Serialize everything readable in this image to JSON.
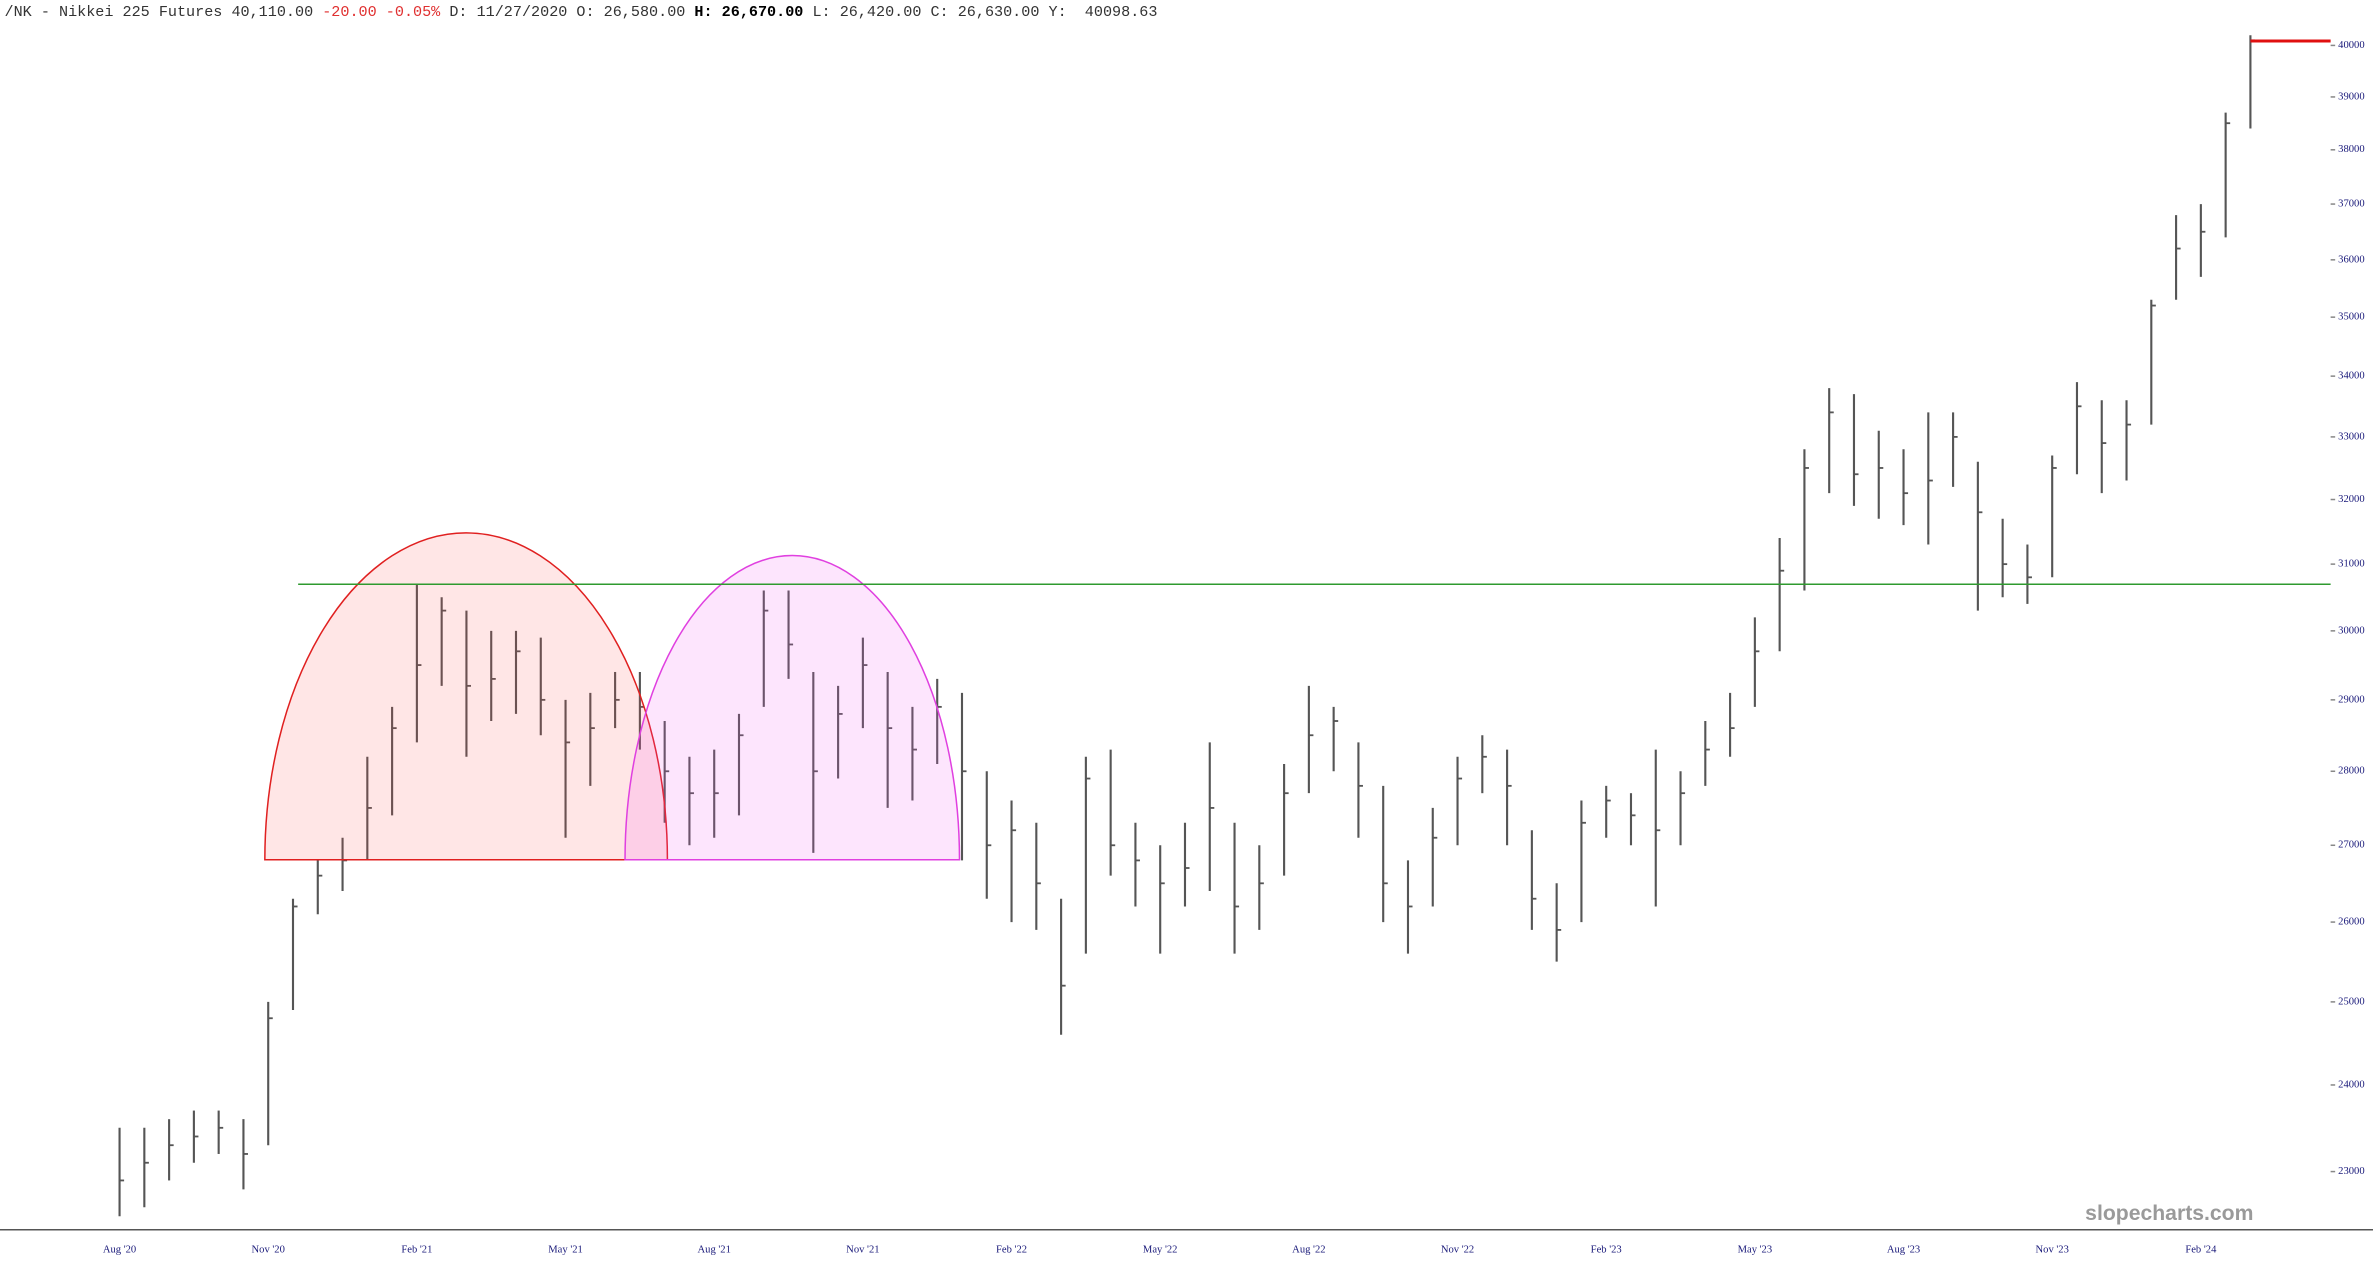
{
  "header": {
    "symbol": "/NK - Nikkei 225 Futures",
    "last": "40,110.00",
    "change": "-20.00",
    "change_pct": "-0.05%",
    "date_label": "D:",
    "date": "11/27/2020",
    "open_label": "O:",
    "open": "26,580.00",
    "high_label": "H:",
    "high": "26,670.00",
    "low_label": "L:",
    "low": "26,420.00",
    "close_label": "C:",
    "close": "26,630.00",
    "y_label": "Y:",
    "y": "40098.63"
  },
  "watermark": "slopecharts.com",
  "chart_data": {
    "type": "ohlc",
    "log_scale": true,
    "color": "#555555",
    "categories": [
      "Aug '20",
      null,
      null,
      null,
      null,
      null,
      "Nov '20",
      null,
      null,
      null,
      null,
      null,
      "Feb '21",
      null,
      null,
      null,
      null,
      null,
      "May '21",
      null,
      null,
      null,
      null,
      null,
      "Aug '21",
      null,
      null,
      null,
      null,
      null,
      "Nov '21",
      null,
      null,
      null,
      null,
      null,
      "Feb '22",
      null,
      null,
      null,
      null,
      null,
      "May '22",
      null,
      null,
      null,
      null,
      null,
      "Aug '22",
      null,
      null,
      null,
      null,
      null,
      "Nov '22",
      null,
      null,
      null,
      null,
      null,
      "Feb '23",
      null,
      null,
      null,
      null,
      null,
      "May '23",
      null,
      null,
      null,
      null,
      null,
      "Aug '23",
      null,
      null,
      null,
      null,
      null,
      "Nov '23",
      null,
      null,
      null,
      null,
      null,
      "Feb '24",
      null,
      null
    ],
    "high": [
      23500,
      23500,
      23600,
      23700,
      23700,
      23600,
      25000,
      26300,
      26800,
      27100,
      28200,
      28900,
      30700,
      30500,
      30300,
      30000,
      30000,
      29900,
      29000,
      29100,
      29400,
      29400,
      28700,
      28200,
      28300,
      28800,
      30600,
      30600,
      29400,
      29200,
      29900,
      29400,
      28900,
      29300,
      29100,
      28000,
      27600,
      27300,
      26300,
      28200,
      28300,
      27300,
      27000,
      27300,
      28400,
      27300,
      27000,
      28100,
      29200,
      28900,
      28400,
      27800,
      26800,
      27500,
      28200,
      28500,
      28300,
      27200,
      26500,
      27600,
      27800,
      27700,
      28300,
      28000,
      28700,
      29100,
      30200,
      31400,
      32800,
      33800,
      33700,
      33100,
      32800,
      33400,
      33400,
      32600,
      31700,
      31300,
      32700,
      33900,
      33600,
      33600,
      35300,
      36800,
      37000,
      38700,
      40200
    ],
    "low": [
      22500,
      22600,
      22900,
      23100,
      23200,
      22800,
      23300,
      24900,
      26100,
      26400,
      26800,
      27400,
      28400,
      29200,
      28200,
      28700,
      28800,
      28500,
      27100,
      27800,
      28600,
      28300,
      27300,
      27000,
      27100,
      27400,
      28900,
      29300,
      26900,
      27900,
      28600,
      27500,
      27600,
      28100,
      26800,
      26300,
      26000,
      25900,
      24600,
      25600,
      26600,
      26200,
      25600,
      26200,
      26400,
      25600,
      25900,
      26600,
      27700,
      28000,
      27100,
      26000,
      25600,
      26200,
      27000,
      27700,
      27000,
      25900,
      25500,
      26000,
      27100,
      27000,
      26200,
      27000,
      27800,
      28200,
      28900,
      29700,
      30600,
      32100,
      31900,
      31700,
      31600,
      31300,
      32200,
      30300,
      30500,
      30400,
      30800,
      32400,
      32100,
      32300,
      33200,
      35300,
      35700,
      36400,
      38400
    ],
    "close": [
      22900,
      23100,
      23300,
      23400,
      23500,
      23200,
      24800,
      26200,
      26600,
      26800,
      27500,
      28600,
      29500,
      30300,
      29200,
      29300,
      29700,
      29000,
      28400,
      28600,
      29000,
      28900,
      28000,
      27700,
      27700,
      28500,
      30300,
      29800,
      28000,
      28800,
      29500,
      28600,
      28300,
      28900,
      28000,
      27000,
      27200,
      26500,
      25200,
      27900,
      27000,
      26800,
      26500,
      26700,
      27500,
      26200,
      26500,
      27700,
      28500,
      28700,
      27800,
      26500,
      26200,
      27100,
      27900,
      28200,
      27800,
      26300,
      25900,
      27300,
      27600,
      27400,
      27200,
      27700,
      28300,
      28600,
      29700,
      30900,
      32500,
      33400,
      32400,
      32500,
      32100,
      32300,
      33000,
      31800,
      31000,
      30800,
      32500,
      33500,
      32900,
      33200,
      35200,
      36200,
      36500,
      38500,
      40100
    ],
    "ylim": [
      22360,
      40900
    ],
    "yticks": [
      23000,
      24000,
      25000,
      26000,
      27000,
      28000,
      29000,
      30000,
      31000,
      32000,
      33000,
      34000,
      35000,
      36000,
      37000,
      38000,
      39000,
      40000
    ]
  }
}
